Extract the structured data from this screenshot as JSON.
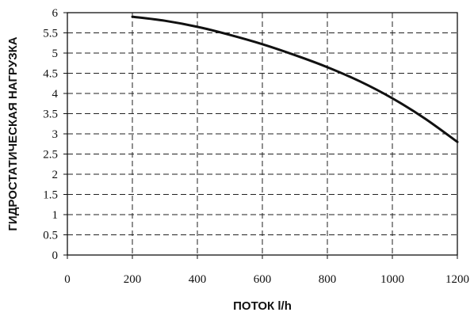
{
  "chart_data": {
    "type": "line",
    "xlabel": "ПОТОК l/h",
    "ylabel": "ГИДРОСТАТИЧЕСКАЯ НАГРУЗКА",
    "xlim": [
      0,
      1200
    ],
    "ylim": [
      0,
      6
    ],
    "xticks": [
      "0",
      "200",
      "400",
      "600",
      "800",
      "1000",
      "1200"
    ],
    "yticks": [
      "0",
      "0.5",
      "1",
      "1.5",
      "2",
      "2.5",
      "3",
      "3.5",
      "4",
      "4.5",
      "5",
      "5.5",
      "6"
    ],
    "grid": true,
    "series": [
      {
        "x": [
          200,
          300,
          400,
          500,
          600,
          700,
          800,
          900,
          1000,
          1100,
          1200
        ],
        "y": [
          5.9,
          5.8,
          5.65,
          5.45,
          5.22,
          4.95,
          4.65,
          4.3,
          3.88,
          3.38,
          2.8
        ]
      }
    ]
  }
}
